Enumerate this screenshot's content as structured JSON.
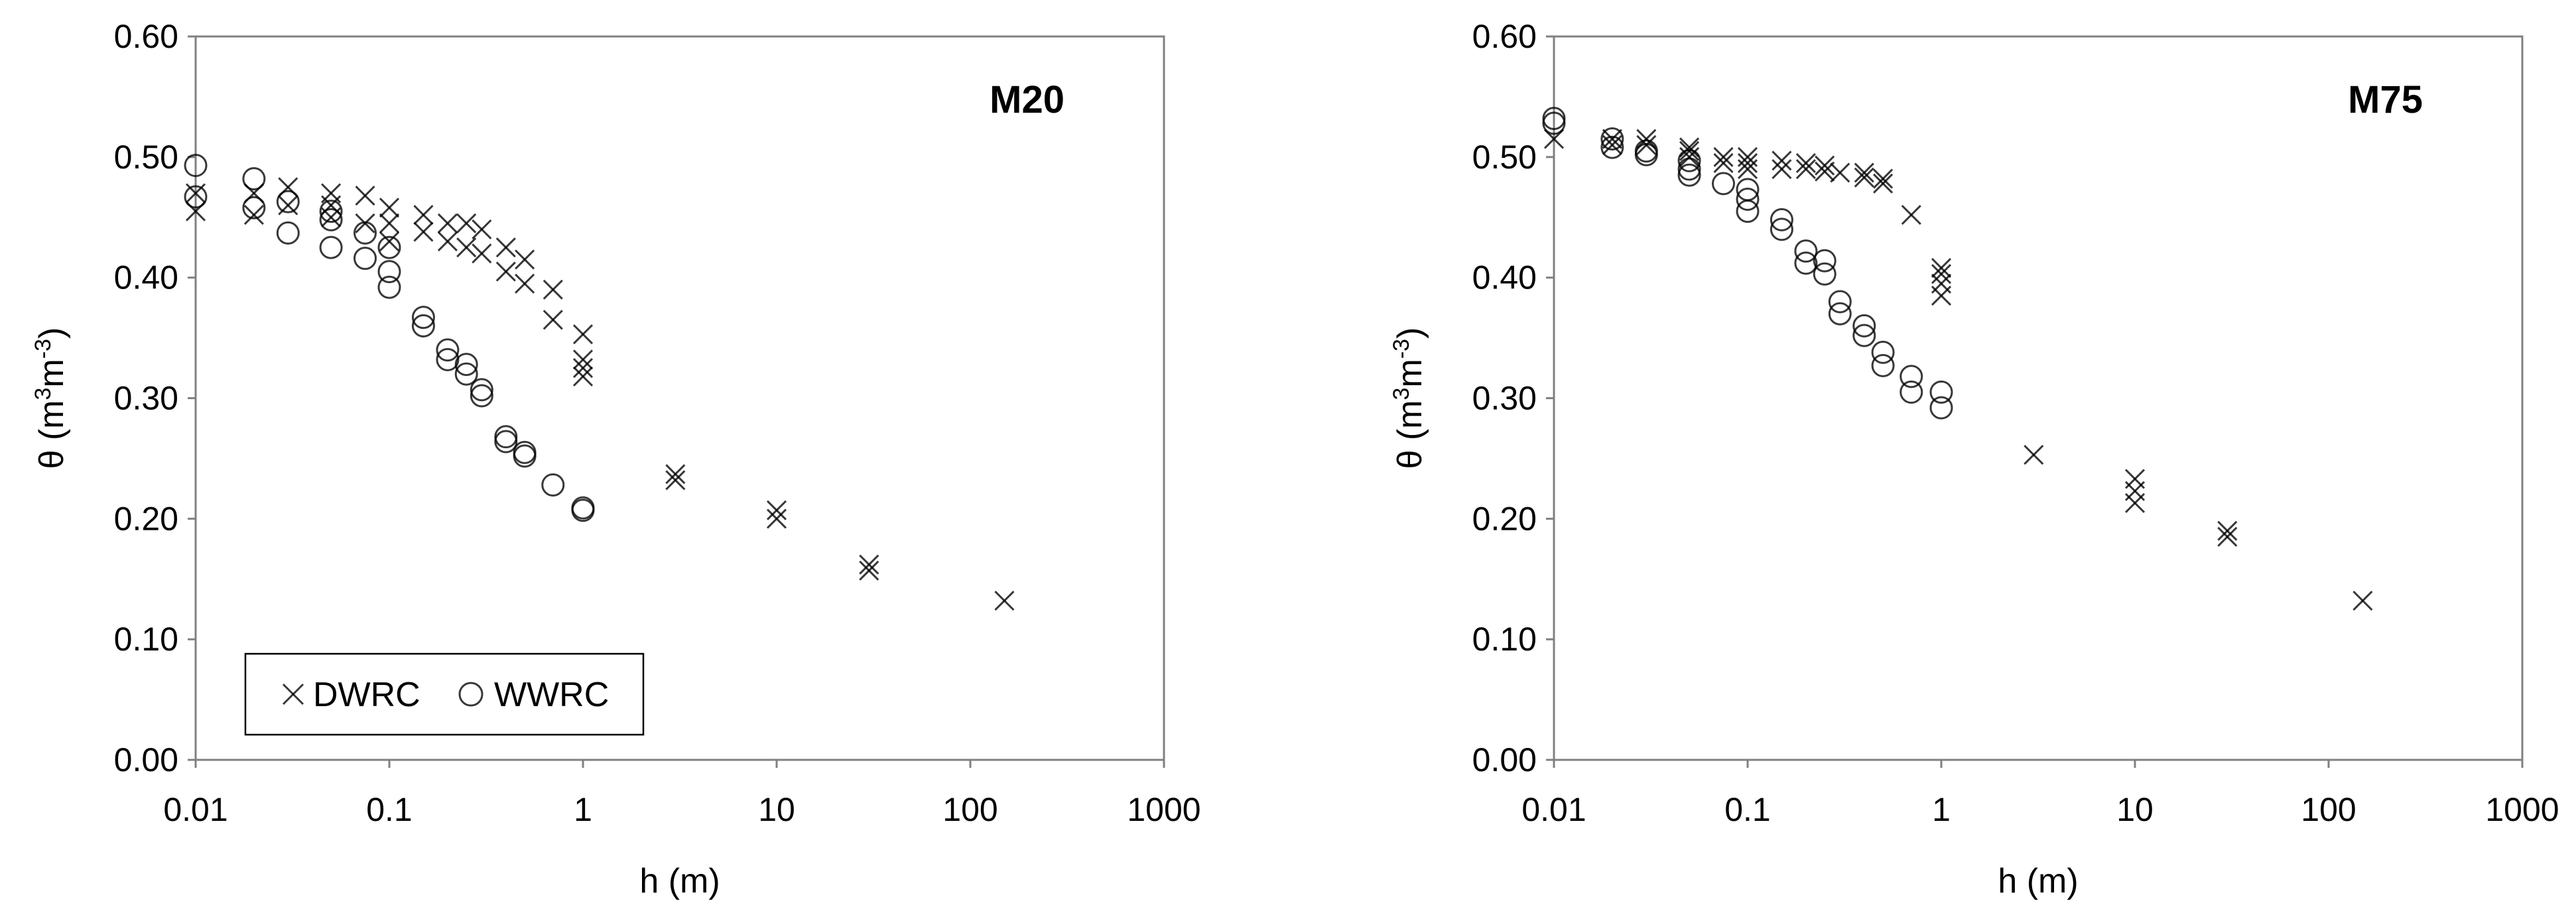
{
  "chart_data": [
    {
      "type": "scatter",
      "title": "M20",
      "xlabel": "h (m)",
      "ylabel": "θ (m³m⁻³)",
      "ylabel_parts": [
        "θ (m",
        "3",
        "m",
        "-3",
        ")"
      ],
      "xscale": "log",
      "xlim": [
        0.01,
        1000
      ],
      "ylim": [
        0,
        0.6
      ],
      "xticks": [
        "0.01",
        "0.1",
        "1",
        "10",
        "100",
        "1000"
      ],
      "yticks": [
        "0.00",
        "0.10",
        "0.20",
        "0.30",
        "0.40",
        "0.50",
        "0.60"
      ],
      "grid": false,
      "legend": {
        "placement": "bottom-left",
        "entries": [
          "DWRC",
          "WWRC"
        ]
      },
      "series": [
        {
          "name": "DWRC",
          "marker": "x",
          "points": [
            [
              0.01,
              0.455
            ],
            [
              0.01,
              0.47
            ],
            [
              0.02,
              0.452
            ],
            [
              0.02,
              0.47
            ],
            [
              0.03,
              0.46
            ],
            [
              0.03,
              0.475
            ],
            [
              0.05,
              0.45
            ],
            [
              0.05,
              0.46
            ],
            [
              0.05,
              0.47
            ],
            [
              0.075,
              0.445
            ],
            [
              0.075,
              0.468
            ],
            [
              0.1,
              0.43
            ],
            [
              0.1,
              0.445
            ],
            [
              0.1,
              0.458
            ],
            [
              0.15,
              0.438
            ],
            [
              0.15,
              0.452
            ],
            [
              0.2,
              0.43
            ],
            [
              0.2,
              0.445
            ],
            [
              0.25,
              0.425
            ],
            [
              0.25,
              0.445
            ],
            [
              0.3,
              0.42
            ],
            [
              0.3,
              0.44
            ],
            [
              0.4,
              0.405
            ],
            [
              0.4,
              0.425
            ],
            [
              0.5,
              0.395
            ],
            [
              0.5,
              0.415
            ],
            [
              0.7,
              0.365
            ],
            [
              0.7,
              0.39
            ],
            [
              1,
              0.318
            ],
            [
              1,
              0.325
            ],
            [
              1,
              0.332
            ],
            [
              1,
              0.353
            ],
            [
              3,
              0.232
            ],
            [
              3,
              0.237
            ],
            [
              10,
              0.2
            ],
            [
              10,
              0.207
            ],
            [
              30,
              0.157
            ],
            [
              30,
              0.162
            ],
            [
              150,
              0.132
            ]
          ]
        },
        {
          "name": "WWRC",
          "marker": "o",
          "points": [
            [
              0.01,
              0.493
            ],
            [
              0.01,
              0.467
            ],
            [
              0.02,
              0.482
            ],
            [
              0.02,
              0.458
            ],
            [
              0.03,
              0.463
            ],
            [
              0.03,
              0.437
            ],
            [
              0.05,
              0.455
            ],
            [
              0.05,
              0.448
            ],
            [
              0.05,
              0.425
            ],
            [
              0.075,
              0.437
            ],
            [
              0.075,
              0.416
            ],
            [
              0.1,
              0.425
            ],
            [
              0.1,
              0.405
            ],
            [
              0.1,
              0.392
            ],
            [
              0.15,
              0.367
            ],
            [
              0.15,
              0.36
            ],
            [
              0.2,
              0.34
            ],
            [
              0.2,
              0.332
            ],
            [
              0.25,
              0.328
            ],
            [
              0.25,
              0.32
            ],
            [
              0.3,
              0.307
            ],
            [
              0.3,
              0.302
            ],
            [
              0.4,
              0.268
            ],
            [
              0.4,
              0.264
            ],
            [
              0.5,
              0.255
            ],
            [
              0.5,
              0.252
            ],
            [
              0.7,
              0.228
            ],
            [
              1,
              0.209
            ],
            [
              1,
              0.207
            ]
          ]
        }
      ]
    },
    {
      "type": "scatter",
      "title": "M75",
      "xlabel": "h (m)",
      "ylabel": "θ (m³m⁻³)",
      "ylabel_parts": [
        "θ (m",
        "3",
        "m",
        "-3",
        ")"
      ],
      "xscale": "log",
      "xlim": [
        0.01,
        1000
      ],
      "ylim": [
        0,
        0.6
      ],
      "xticks": [
        "0.01",
        "0.1",
        "1",
        "10",
        "100",
        "1000"
      ],
      "yticks": [
        "0.00",
        "0.10",
        "0.20",
        "0.30",
        "0.40",
        "0.50",
        "0.60"
      ],
      "grid": false,
      "series": [
        {
          "name": "DWRC",
          "marker": "x",
          "points": [
            [
              0.01,
              0.515
            ],
            [
              0.02,
              0.51
            ],
            [
              0.02,
              0.515
            ],
            [
              0.03,
              0.51
            ],
            [
              0.03,
              0.515
            ],
            [
              0.05,
              0.5
            ],
            [
              0.05,
              0.505
            ],
            [
              0.05,
              0.508
            ],
            [
              0.075,
              0.495
            ],
            [
              0.075,
              0.5
            ],
            [
              0.1,
              0.49
            ],
            [
              0.1,
              0.495
            ],
            [
              0.1,
              0.5
            ],
            [
              0.15,
              0.49
            ],
            [
              0.15,
              0.497
            ],
            [
              0.2,
              0.49
            ],
            [
              0.2,
              0.495
            ],
            [
              0.25,
              0.488
            ],
            [
              0.25,
              0.493
            ],
            [
              0.3,
              0.487
            ],
            [
              0.4,
              0.483
            ],
            [
              0.4,
              0.487
            ],
            [
              0.5,
              0.478
            ],
            [
              0.5,
              0.482
            ],
            [
              0.7,
              0.452
            ],
            [
              1,
              0.385
            ],
            [
              1,
              0.395
            ],
            [
              1,
              0.403
            ],
            [
              1,
              0.408
            ],
            [
              3,
              0.253
            ],
            [
              10,
              0.213
            ],
            [
              10,
              0.223
            ],
            [
              10,
              0.233
            ],
            [
              30,
              0.185
            ],
            [
              30,
              0.19
            ],
            [
              150,
              0.132
            ]
          ]
        },
        {
          "name": "WWRC",
          "marker": "o",
          "points": [
            [
              0.01,
              0.532
            ],
            [
              0.01,
              0.528
            ],
            [
              0.02,
              0.515
            ],
            [
              0.02,
              0.508
            ],
            [
              0.03,
              0.505
            ],
            [
              0.03,
              0.502
            ],
            [
              0.05,
              0.497
            ],
            [
              0.05,
              0.49
            ],
            [
              0.05,
              0.485
            ],
            [
              0.075,
              0.478
            ],
            [
              0.1,
              0.473
            ],
            [
              0.1,
              0.465
            ],
            [
              0.1,
              0.455
            ],
            [
              0.15,
              0.448
            ],
            [
              0.15,
              0.44
            ],
            [
              0.2,
              0.422
            ],
            [
              0.2,
              0.412
            ],
            [
              0.25,
              0.414
            ],
            [
              0.25,
              0.403
            ],
            [
              0.3,
              0.38
            ],
            [
              0.3,
              0.37
            ],
            [
              0.4,
              0.36
            ],
            [
              0.4,
              0.352
            ],
            [
              0.5,
              0.338
            ],
            [
              0.5,
              0.327
            ],
            [
              0.7,
              0.318
            ],
            [
              0.7,
              0.305
            ],
            [
              1,
              0.305
            ],
            [
              1,
              0.292
            ]
          ]
        }
      ]
    }
  ]
}
